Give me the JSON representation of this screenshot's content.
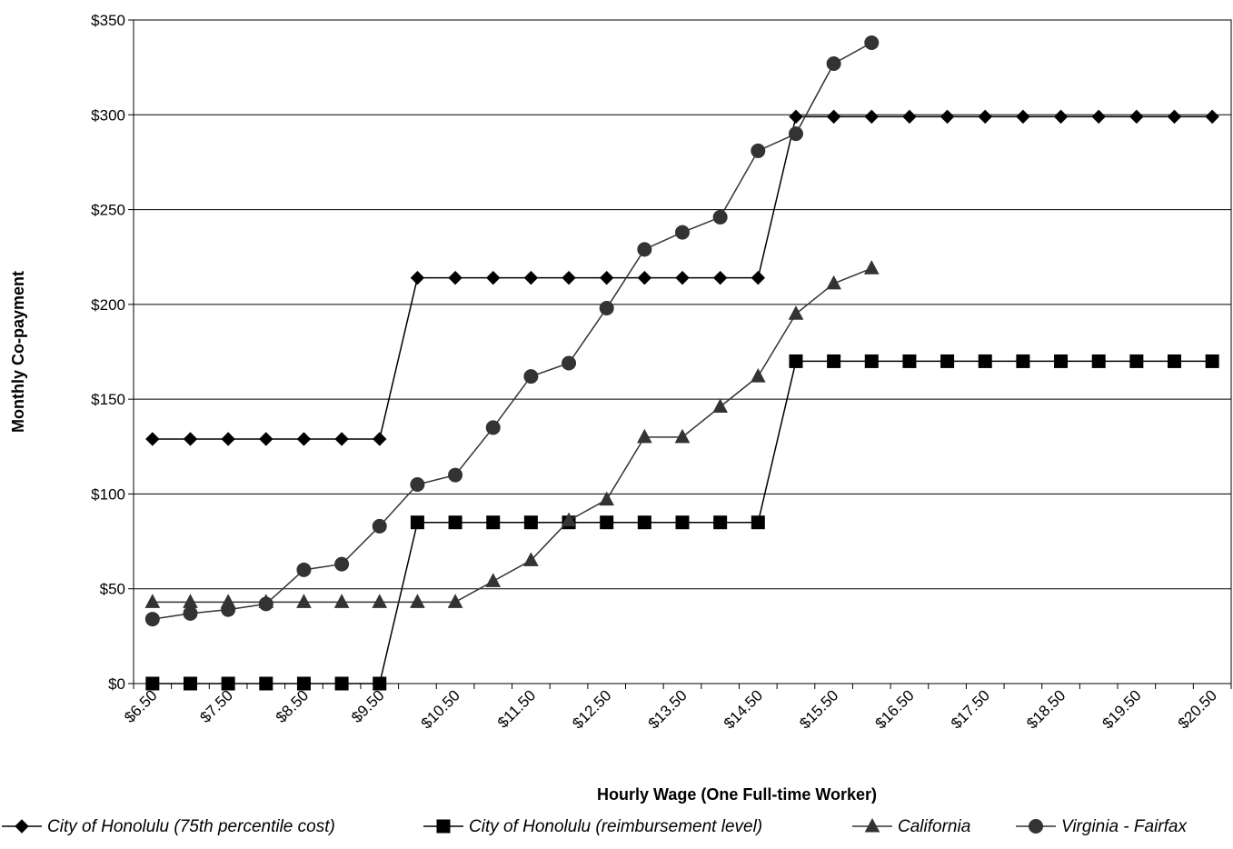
{
  "chart_data": {
    "type": "line",
    "title": "",
    "xlabel": "Hourly Wage (One Full-time Worker)",
    "ylabel": "Monthly Co-payment",
    "ylim": [
      0,
      350
    ],
    "y_ticks": [
      "$0",
      "$50",
      "$100",
      "$150",
      "$200",
      "$250",
      "$300",
      "$350"
    ],
    "y_tick_values": [
      0,
      50,
      100,
      150,
      200,
      250,
      300,
      350
    ],
    "x_tick_labels": [
      "$6.50",
      "$7.50",
      "$8.50",
      "$9.50",
      "$10.50",
      "$11.50",
      "$12.50",
      "$13.50",
      "$14.50",
      "$15.50",
      "$16.50",
      "$17.50",
      "$18.50",
      "$19.50",
      "$20.50"
    ],
    "x": [
      6.5,
      7,
      7.5,
      8,
      8.5,
      9,
      9.5,
      10,
      10.5,
      11,
      11.5,
      12,
      12.5,
      13,
      13.5,
      14,
      14.5,
      15,
      15.5,
      16,
      16.5,
      17,
      17.5,
      18,
      18.5,
      19,
      19.5,
      20,
      20.5
    ],
    "grid": "horizontal",
    "legend_position": "bottom",
    "series": [
      {
        "name": "City of Honolulu (75th percentile cost)",
        "marker": "diamond",
        "color": "#000000",
        "values": [
          129,
          129,
          129,
          129,
          129,
          129,
          129,
          214,
          214,
          214,
          214,
          214,
          214,
          214,
          214,
          214,
          214,
          299,
          299,
          299,
          299,
          299,
          299,
          299,
          299,
          299,
          299,
          299,
          299
        ]
      },
      {
        "name": "City of Honolulu (reimbursement level)",
        "marker": "square",
        "color": "#000000",
        "values": [
          0,
          0,
          0,
          0,
          0,
          0,
          0,
          85,
          85,
          85,
          85,
          85,
          85,
          85,
          85,
          85,
          85,
          170,
          170,
          170,
          170,
          170,
          170,
          170,
          170,
          170,
          170,
          170,
          170
        ]
      },
      {
        "name": "California",
        "marker": "triangle",
        "color": "#333333",
        "values": [
          43,
          43,
          43,
          43,
          43,
          43,
          43,
          43,
          43,
          54,
          65,
          86,
          97,
          130,
          130,
          146,
          162,
          195,
          211,
          219,
          null,
          null,
          null,
          null,
          null,
          null,
          null,
          null,
          null
        ]
      },
      {
        "name": "Virginia - Fairfax",
        "marker": "circle",
        "color": "#333333",
        "values": [
          34,
          37,
          39,
          42,
          60,
          63,
          83,
          105,
          110,
          135,
          162,
          169,
          198,
          229,
          238,
          246,
          281,
          290,
          327,
          338,
          null,
          null,
          null,
          null,
          null,
          null,
          null,
          null,
          null
        ]
      }
    ]
  }
}
